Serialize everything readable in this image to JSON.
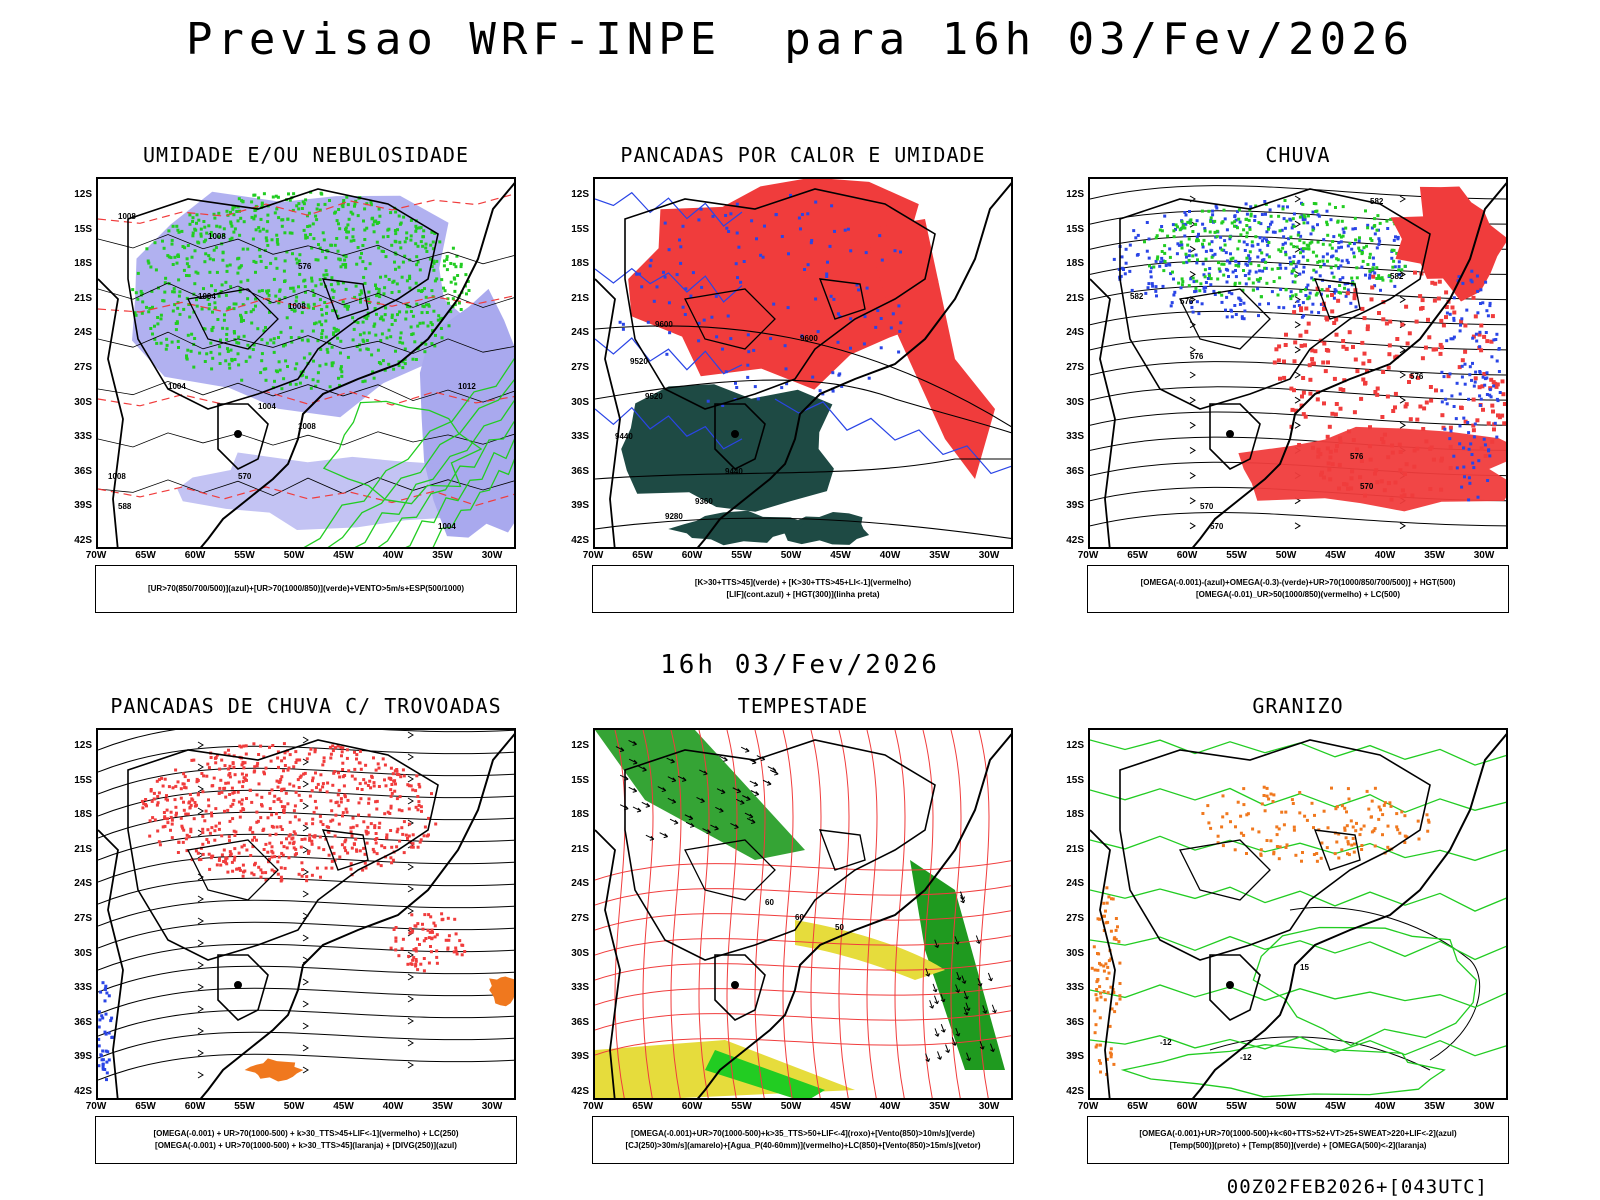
{
  "main_title": "Previsao WRF-INPE  para 16h 03/Fev/2026",
  "mid_title": "16h 03/Fev/2026",
  "footer": "00Z02FEB2026+[043UTC]",
  "lat_labels": [
    "12S",
    "15S",
    "18S",
    "21S",
    "24S",
    "27S",
    "30S",
    "33S",
    "36S",
    "39S",
    "42S"
  ],
  "lon_labels": [
    "70W",
    "65W",
    "60W",
    "55W",
    "50W",
    "45W",
    "40W",
    "35W",
    "30W"
  ],
  "colors": {
    "red": "#f03c3c",
    "green": "#22cc22",
    "blue": "#2a45e6",
    "lavender": "#a9a9ee",
    "darkteal": "#1e4a44",
    "yellow": "#e6dc3c",
    "orange": "#f0781e",
    "darkgreen": "#1f9a1f"
  },
  "panels": [
    {
      "title": "UMIDADE E/OU NEBULOSIDADE",
      "legend": [
        "[UR>70(850/700/500)](azul)+[UR>70(1000/850)](verde)+VENTO>5m/s+ESP(500/1000)"
      ]
    },
    {
      "title": "PANCADAS POR CALOR E UMIDADE",
      "legend": [
        "[K>30+TTS>45](verde) + [K>30+TTS>45+LI<-1](vermelho)",
        "[LIF](cont.azul) + [HGT(300)](linha preta)"
      ]
    },
    {
      "title": "CHUVA",
      "legend": [
        "[OMEGA(-0.001)-(azul)+OMEGA(-0.3)-(verde)+UR>70(1000/850/700/500)] + HGT(500)",
        "[OMEGA(-0.01)_UR>50(1000/850)(vermelho) + LC(500)"
      ]
    },
    {
      "title": "PANCADAS DE CHUVA C/ TROVOADAS",
      "legend": [
        "[OMEGA(-0.001) + UR>70(1000-500) + k>30_TTS>45+LIF<-1](vermelho) + LC(250)",
        "[OMEGA(-0.001) + UR>70(1000-500) + k>30_TTS>45](laranja) + [DIVG(250)](azul)"
      ]
    },
    {
      "title": "TEMPESTADE",
      "legend": [
        "[OMEGA(-0.001)+UR>70(1000-500)+k>35_TTS>50+LIF<-4](roxo)+[Vento(850)>10m/s](verde)",
        "[CJ(250)>30m/s](amarelo)+[Agua_P(40-60mm)](vermelho)+LC(850)+[Vento(850)>15m/s](vetor)"
      ]
    },
    {
      "title": "GRANIZO",
      "legend": [
        "[OMEGA(-0.001)+UR>70(1000-500)+k<60+TTS>52+VT>25+SWEAT>220+LIF<-2](azul)",
        "[Temp(500)](preto) + [Temp(850)](verde) + [OMEGA(500)<-2](laranja)"
      ]
    }
  ],
  "contour_labels": {
    "p0": [
      "1008",
      "1008",
      "1004",
      "1004",
      "1004",
      "1008",
      "1008",
      "1008",
      "1012",
      "576",
      "570",
      "588",
      "1004"
    ],
    "p1": [
      "9600",
      "9600",
      "9520",
      "9520",
      "9440",
      "9440",
      "9360",
      "9280"
    ],
    "p2": [
      "582",
      "582",
      "576",
      "576",
      "576",
      "570",
      "570",
      "570",
      "576",
      "582"
    ],
    "p4": [
      "60",
      "50",
      "60"
    ],
    "p5": [
      "-12",
      "-12",
      "15"
    ]
  }
}
